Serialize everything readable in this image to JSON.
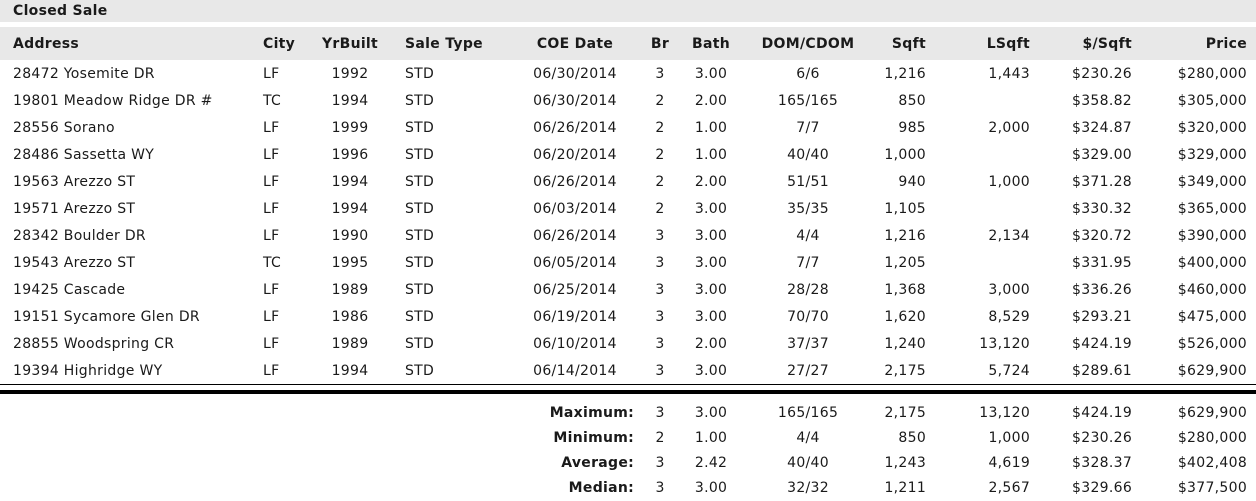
{
  "title": "Closed Sale",
  "colors": {
    "header_band": "#e8e8e8",
    "text": "#1a1a1a",
    "rule": "#000000"
  },
  "table": {
    "columns": [
      {
        "label": "Address",
        "key": "address"
      },
      {
        "label": "City",
        "key": "city"
      },
      {
        "label": "YrBuilt",
        "key": "yrbuilt"
      },
      {
        "label": "Sale Type",
        "key": "sale-type"
      },
      {
        "label": "COE Date",
        "key": "coe-date"
      },
      {
        "label": "Br",
        "key": "br"
      },
      {
        "label": "Bath",
        "key": "bath"
      },
      {
        "label": "DOM/CDOM",
        "key": "dom-cdom"
      },
      {
        "label": "Sqft",
        "key": "sqft"
      },
      {
        "label": "LSqft",
        "key": "lsqft"
      },
      {
        "label": "$/Sqft",
        "key": "price-per-sqft"
      },
      {
        "label": "Price",
        "key": "price"
      }
    ],
    "rows": [
      [
        "28472 Yosemite DR",
        "LF",
        "1992",
        "STD",
        "06/30/2014",
        "3",
        "3.00",
        "6/6",
        "1,216",
        "1,443",
        "$230.26",
        "$280,000"
      ],
      [
        "19801 Meadow Ridge DR #",
        "TC",
        "1994",
        "STD",
        "06/30/2014",
        "2",
        "2.00",
        "165/165",
        "850",
        "",
        "$358.82",
        "$305,000"
      ],
      [
        "28556 Sorano",
        "LF",
        "1999",
        "STD",
        "06/26/2014",
        "2",
        "1.00",
        "7/7",
        "985",
        "2,000",
        "$324.87",
        "$320,000"
      ],
      [
        "28486 Sassetta WY",
        "LF",
        "1996",
        "STD",
        "06/20/2014",
        "2",
        "1.00",
        "40/40",
        "1,000",
        "",
        "$329.00",
        "$329,000"
      ],
      [
        "19563 Arezzo ST",
        "LF",
        "1994",
        "STD",
        "06/26/2014",
        "2",
        "2.00",
        "51/51",
        "940",
        "1,000",
        "$371.28",
        "$349,000"
      ],
      [
        "19571 Arezzo ST",
        "LF",
        "1994",
        "STD",
        "06/03/2014",
        "2",
        "3.00",
        "35/35",
        "1,105",
        "",
        "$330.32",
        "$365,000"
      ],
      [
        "28342 Boulder DR",
        "LF",
        "1990",
        "STD",
        "06/26/2014",
        "3",
        "3.00",
        "4/4",
        "1,216",
        "2,134",
        "$320.72",
        "$390,000"
      ],
      [
        "19543 Arezzo ST",
        "TC",
        "1995",
        "STD",
        "06/05/2014",
        "3",
        "3.00",
        "7/7",
        "1,205",
        "",
        "$331.95",
        "$400,000"
      ],
      [
        "19425 Cascade",
        "LF",
        "1989",
        "STD",
        "06/25/2014",
        "3",
        "3.00",
        "28/28",
        "1,368",
        "3,000",
        "$336.26",
        "$460,000"
      ],
      [
        "19151 Sycamore Glen DR",
        "LF",
        "1986",
        "STD",
        "06/19/2014",
        "3",
        "3.00",
        "70/70",
        "1,620",
        "8,529",
        "$293.21",
        "$475,000"
      ],
      [
        "28855 Woodspring CR",
        "LF",
        "1989",
        "STD",
        "06/10/2014",
        "3",
        "2.00",
        "37/37",
        "1,240",
        "13,120",
        "$424.19",
        "$526,000"
      ],
      [
        "19394 Highridge WY",
        "LF",
        "1994",
        "STD",
        "06/14/2014",
        "3",
        "3.00",
        "27/27",
        "2,175",
        "5,724",
        "$289.61",
        "$629,900"
      ]
    ],
    "summary": [
      {
        "label": "Maximum:",
        "values": [
          "3",
          "3.00",
          "165/165",
          "2,175",
          "13,120",
          "$424.19",
          "$629,900"
        ]
      },
      {
        "label": "Minimum:",
        "values": [
          "2",
          "1.00",
          "4/4",
          "850",
          "1,000",
          "$230.26",
          "$280,000"
        ]
      },
      {
        "label": "Average:",
        "values": [
          "3",
          "2.42",
          "40/40",
          "1,243",
          "4,619",
          "$328.37",
          "$402,408"
        ]
      },
      {
        "label": "Median:",
        "values": [
          "3",
          "3.00",
          "32/32",
          "1,211",
          "2,567",
          "$329.66",
          "$377,500"
        ]
      }
    ]
  }
}
